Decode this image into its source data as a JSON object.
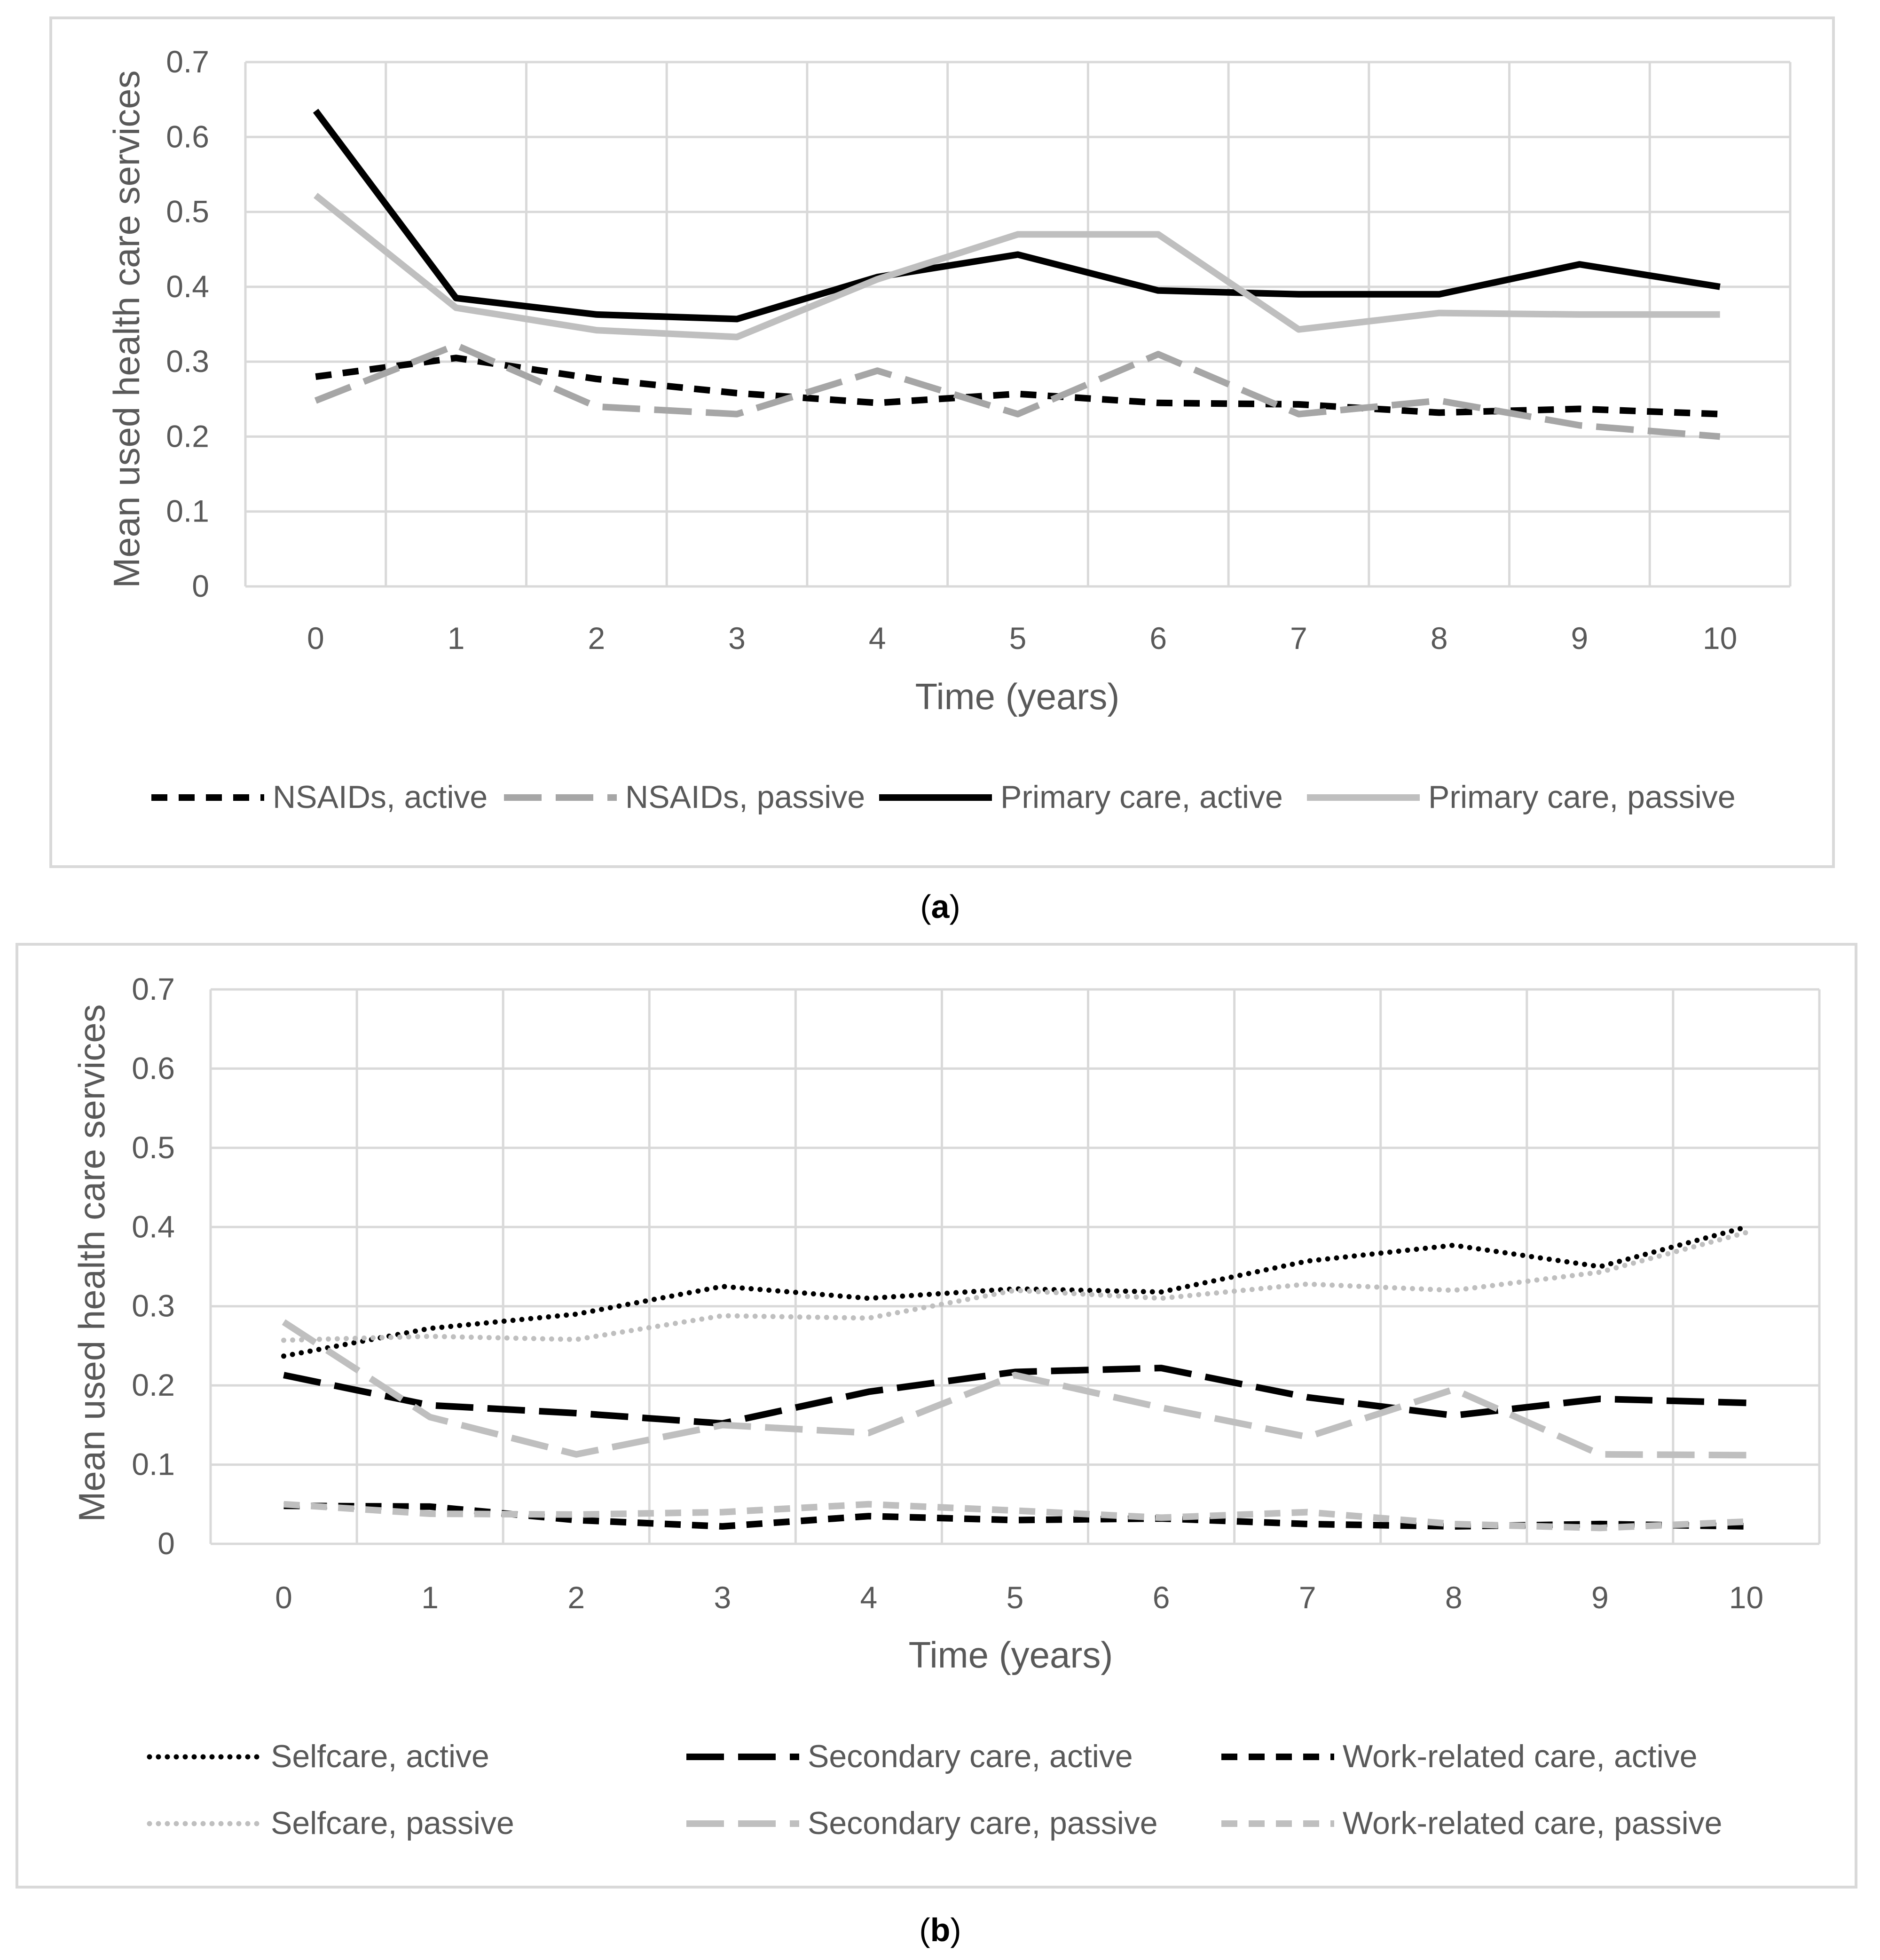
{
  "figure": {
    "captions": [
      "(a)",
      "(b)"
    ],
    "caption_letters": [
      "a",
      "b"
    ]
  },
  "chart_data": [
    {
      "type": "line",
      "panel": "a",
      "xlabel": "Time (years)",
      "ylabel": "Mean used health care services",
      "x": [
        0,
        1,
        2,
        3,
        4,
        5,
        6,
        7,
        8,
        9,
        10
      ],
      "ylim": [
        0,
        0.7
      ],
      "yticks": [
        "0",
        "0.1",
        "0.2",
        "0.3",
        "0.4",
        "0.5",
        "0.6",
        "0.7"
      ],
      "xticks": [
        "0",
        "1",
        "2",
        "3",
        "4",
        "5",
        "6",
        "7",
        "8",
        "9",
        "10"
      ],
      "grid": true,
      "legend_position": "bottom",
      "series": [
        {
          "name": "NSAIDs, active",
          "color": "#000000",
          "style": "dashed",
          "values": [
            0.28,
            0.305,
            0.277,
            0.258,
            0.245,
            0.257,
            0.245,
            0.243,
            0.232,
            0.237,
            0.23
          ]
        },
        {
          "name": "NSAIDs, passive",
          "color": "#a6a6a6",
          "style": "longdash",
          "values": [
            0.248,
            0.322,
            0.24,
            0.23,
            0.288,
            0.23,
            0.31,
            0.23,
            0.248,
            0.215,
            0.2
          ]
        },
        {
          "name": "Primary care, active",
          "color": "#000000",
          "style": "solid",
          "values": [
            0.635,
            0.385,
            0.363,
            0.357,
            0.413,
            0.443,
            0.395,
            0.39,
            0.39,
            0.43,
            0.4
          ]
        },
        {
          "name": "Primary care, passive",
          "color": "#bfbfbf",
          "style": "solid",
          "values": [
            0.522,
            0.372,
            0.342,
            0.333,
            0.41,
            0.47,
            0.47,
            0.343,
            0.365,
            0.363,
            0.363
          ]
        }
      ]
    },
    {
      "type": "line",
      "panel": "b",
      "xlabel": "Time (years)",
      "ylabel": "Mean used health care services",
      "x": [
        0,
        1,
        2,
        3,
        4,
        5,
        6,
        7,
        8,
        9,
        10
      ],
      "ylim": [
        0,
        0.7
      ],
      "yticks": [
        "0",
        "0.1",
        "0.2",
        "0.3",
        "0.4",
        "0.5",
        "0.6",
        "0.7"
      ],
      "xticks": [
        "0",
        "1",
        "2",
        "3",
        "4",
        "5",
        "6",
        "7",
        "8",
        "9",
        "10"
      ],
      "grid": true,
      "legend_position": "bottom",
      "series": [
        {
          "name": "Selfcare, active",
          "color": "#000000",
          "style": "dotted",
          "values": [
            0.237,
            0.272,
            0.29,
            0.325,
            0.31,
            0.322,
            0.318,
            0.357,
            0.377,
            0.35,
            0.4
          ]
        },
        {
          "name": "Secondary care, active",
          "color": "#000000",
          "style": "longdash",
          "values": [
            0.213,
            0.175,
            0.165,
            0.152,
            0.192,
            0.217,
            0.222,
            0.185,
            0.162,
            0.183,
            0.178
          ]
        },
        {
          "name": "Work-related care, active",
          "color": "#000000",
          "style": "dashed",
          "values": [
            0.048,
            0.047,
            0.03,
            0.022,
            0.035,
            0.03,
            0.032,
            0.025,
            0.022,
            0.025,
            0.022
          ]
        },
        {
          "name": "Selfcare, passive",
          "color": "#bfbfbf",
          "style": "dotted",
          "values": [
            0.257,
            0.262,
            0.258,
            0.288,
            0.285,
            0.32,
            0.31,
            0.328,
            0.32,
            0.343,
            0.393
          ]
        },
        {
          "name": "Secondary care, passive",
          "color": "#bfbfbf",
          "style": "longdash",
          "values": [
            0.28,
            0.16,
            0.113,
            0.15,
            0.14,
            0.213,
            0.172,
            0.135,
            0.195,
            0.113,
            0.112
          ]
        },
        {
          "name": "Work-related care, passive",
          "color": "#bfbfbf",
          "style": "dashed",
          "values": [
            0.05,
            0.038,
            0.037,
            0.04,
            0.05,
            0.042,
            0.033,
            0.04,
            0.025,
            0.02,
            0.028
          ]
        }
      ]
    }
  ]
}
